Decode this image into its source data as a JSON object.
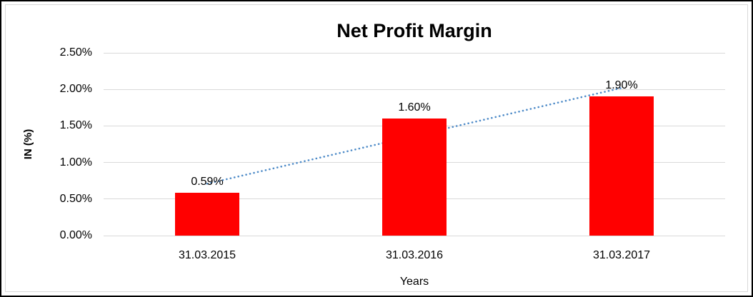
{
  "chart_data": {
    "type": "bar",
    "title": "Net Profit Margin",
    "xlabel": "Years",
    "ylabel": "IN (%)",
    "categories": [
      "31.03.2015",
      "31.03.2016",
      "31.03.2017"
    ],
    "values": [
      0.59,
      1.6,
      1.9
    ],
    "data_labels": [
      "0.59%",
      "1.60%",
      "1.90%"
    ],
    "y_ticks": [
      "0.00%",
      "0.50%",
      "1.00%",
      "1.50%",
      "2.00%",
      "2.50%"
    ],
    "ylim": [
      0,
      2.5
    ],
    "grid": true,
    "legend": "none",
    "bar_color": "#ff0000",
    "gridline_color": "#d9d9d9",
    "trendline": {
      "type": "linear",
      "style": "dotted",
      "color": "#4e8bc8",
      "start_value": 0.71,
      "end_value": 2.02
    }
  }
}
